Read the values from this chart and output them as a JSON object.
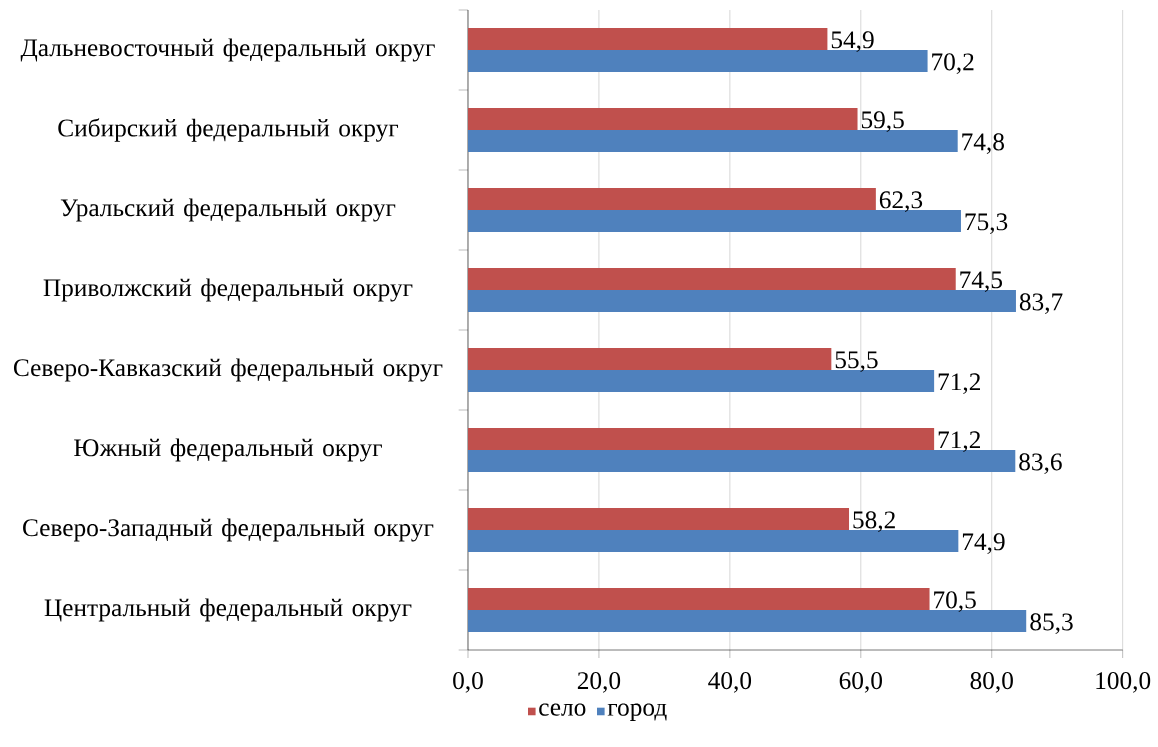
{
  "chart_data": {
    "type": "bar",
    "orientation": "horizontal",
    "categories": [
      "Дальневосточный федеральный округ",
      "Сибирский федеральный округ",
      "Уральский федеральный округ",
      "Приволжский федеральный округ",
      "Северо-Кавказский федеральный округ",
      "Южный федеральный округ",
      "Северо-Западный федеральный округ",
      "Центральный федеральный округ"
    ],
    "series": [
      {
        "name": "село",
        "color": "#c0504d",
        "values": [
          54.9,
          59.5,
          62.3,
          74.5,
          55.5,
          71.2,
          58.2,
          70.5
        ],
        "value_labels": [
          "54,9",
          "59,5",
          "62,3",
          "74,5",
          "55,5",
          "71,2",
          "58,2",
          "70,5"
        ]
      },
      {
        "name": "город",
        "color": "#4f81bd",
        "values": [
          70.2,
          74.8,
          75.3,
          83.7,
          71.2,
          83.6,
          74.9,
          85.3
        ],
        "value_labels": [
          "70,2",
          "74,8",
          "75,3",
          "83,7",
          "71,2",
          "83,6",
          "74,9",
          "85,3"
        ]
      }
    ],
    "xlim": [
      0,
      100
    ],
    "xticks": [
      {
        "value": 0,
        "label": "0,0"
      },
      {
        "value": 20,
        "label": "20,0"
      },
      {
        "value": 40,
        "label": "40,0"
      },
      {
        "value": 60,
        "label": "60,0"
      },
      {
        "value": 80,
        "label": "80,0"
      },
      {
        "value": 100,
        "label": "100,0"
      }
    ],
    "grid": "x",
    "legend": "bottom"
  }
}
